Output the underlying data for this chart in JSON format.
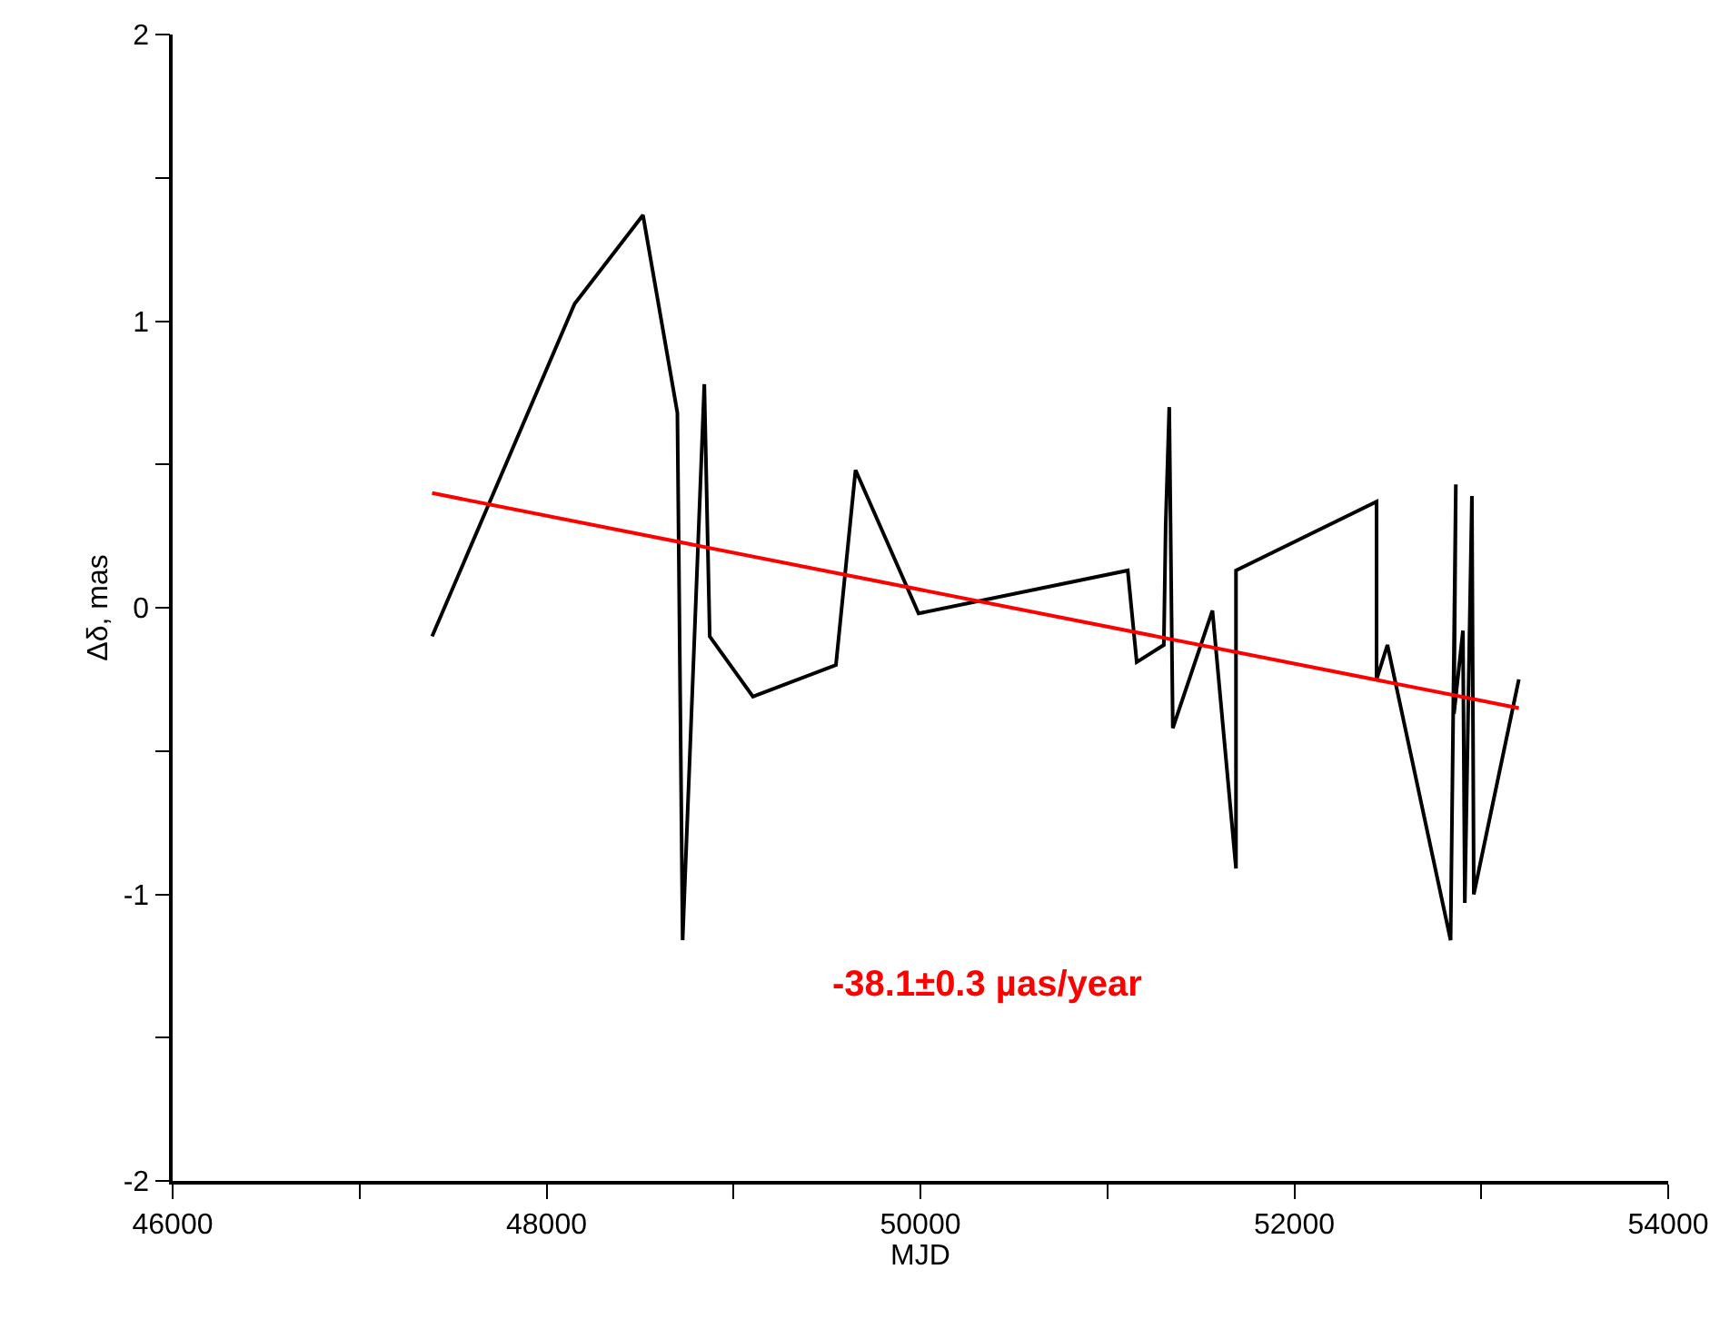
{
  "chart_data": {
    "type": "line",
    "xlabel": "MJD",
    "ylabel": "Δδ, mas",
    "xlim": [
      46000,
      54000
    ],
    "ylim": [
      -2,
      2
    ],
    "xticks": [
      46000,
      {
        "value": 47000,
        "label": null
      },
      48000,
      {
        "value": 49000,
        "label": null
      },
      50000,
      {
        "value": 51000,
        "label": null
      },
      52000,
      {
        "value": 53000,
        "label": null
      },
      54000
    ],
    "yticks": [
      -2,
      {
        "value": -1.5,
        "label": null
      },
      -1,
      {
        "value": -0.5,
        "label": null
      },
      0,
      {
        "value": 0.5,
        "label": null
      },
      1,
      {
        "value": 1.5,
        "label": null
      },
      2
    ],
    "marker": "none",
    "line_style": "solid",
    "series": [
      {
        "color": "#000000",
        "x": [
          47388,
          48150,
          48516,
          48700,
          48728,
          48844,
          48873,
          49104,
          49548,
          49653,
          49990,
          51109,
          51157,
          51302,
          51312,
          51331,
          51350,
          51562,
          51688,
          51688,
          52440,
          52440,
          52498,
          52836,
          52864,
          52854,
          52902,
          52912,
          52950,
          52960,
          53201
        ],
        "values": [
          -0.1,
          1.06,
          1.37,
          0.68,
          -1.16,
          0.78,
          -0.1,
          -0.31,
          -0.2,
          0.48,
          -0.02,
          0.13,
          -0.19,
          -0.13,
          0.29,
          0.7,
          -0.42,
          -0.01,
          -0.91,
          0.13,
          0.37,
          -0.25,
          -0.13,
          -1.16,
          0.43,
          -0.37,
          -0.08,
          -1.03,
          0.39,
          -1.0,
          -0.25
        ]
      },
      {
        "type": "line",
        "color": "#ff0000",
        "x": [
          47388,
          53201
        ],
        "values": [
          0.4,
          -0.35
        ]
      }
    ],
    "annotations": [
      "-38.1±0.3 µas/year"
    ]
  }
}
